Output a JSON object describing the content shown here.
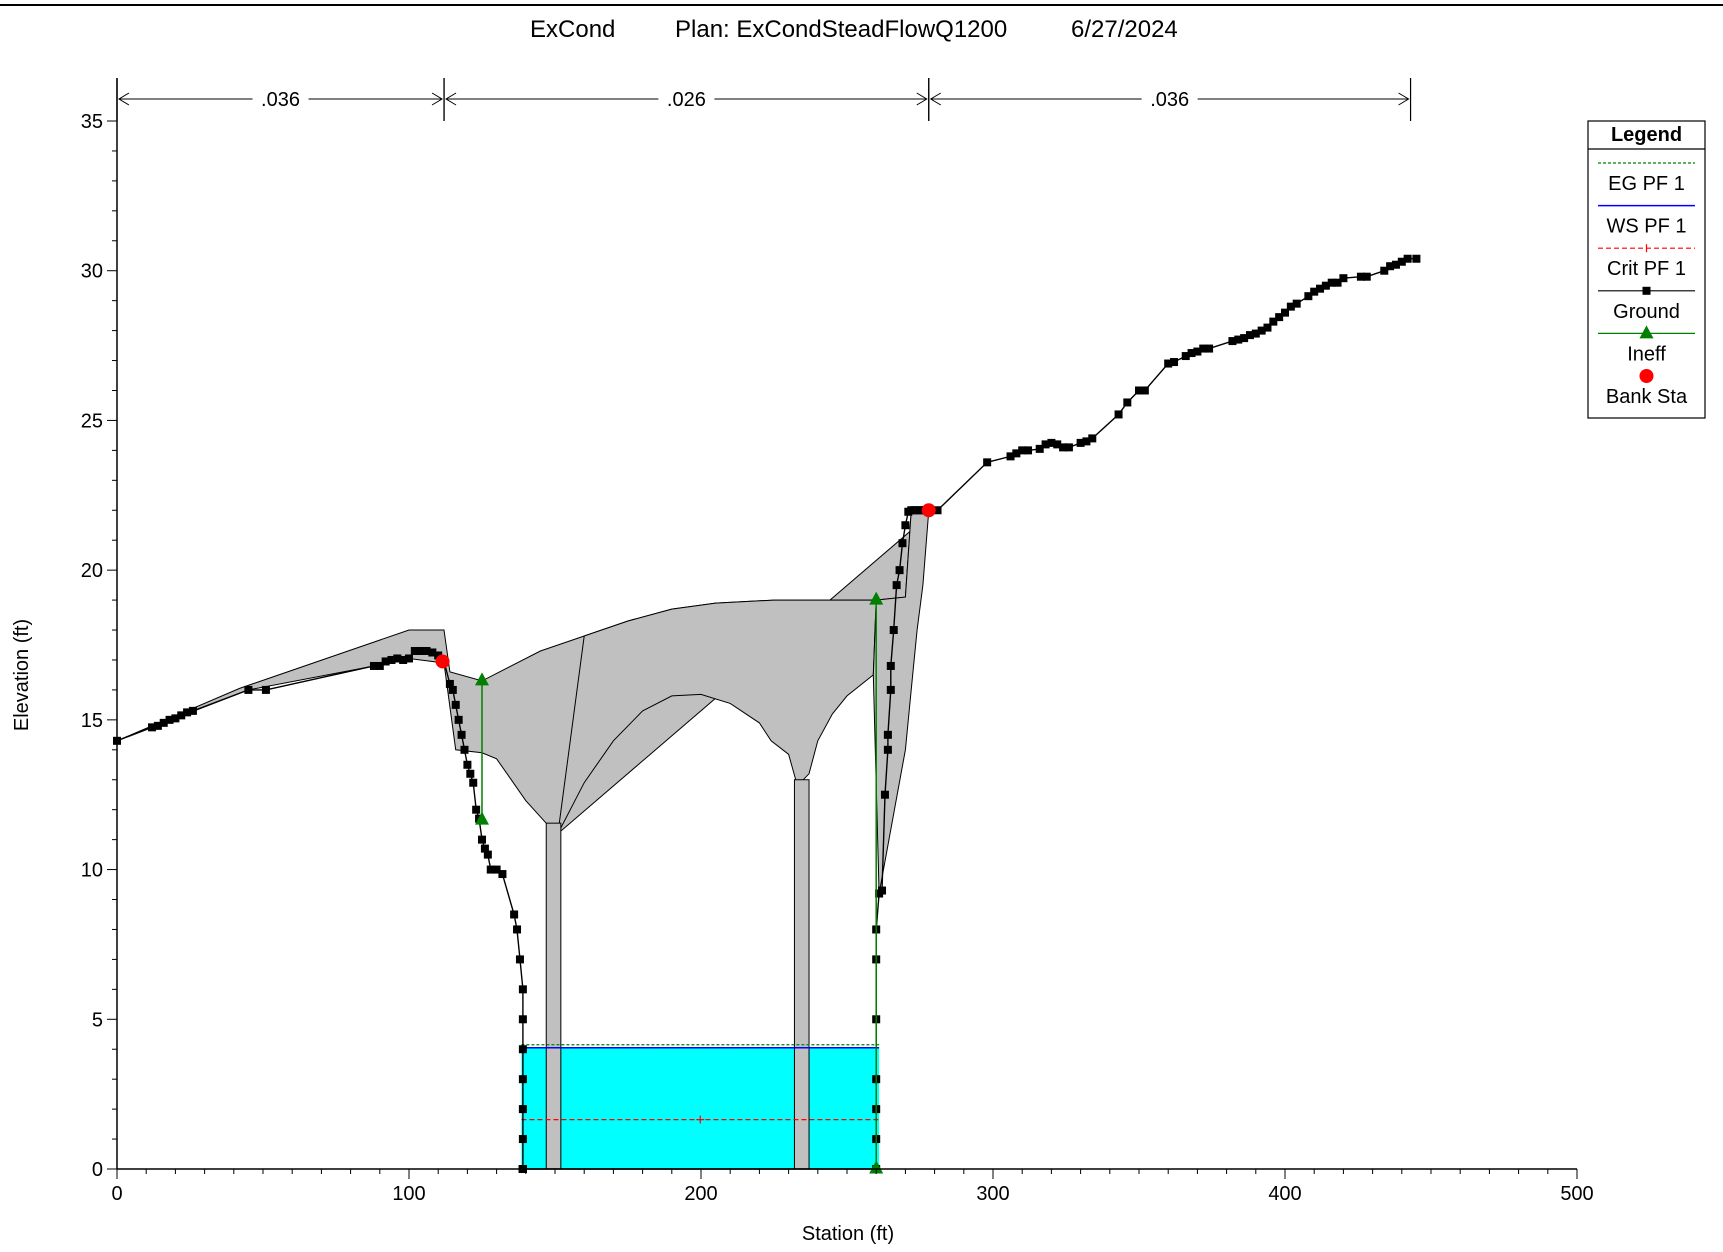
{
  "header": {
    "project": "ExCond",
    "plan": "Plan: ExCondSteadFlowQ1200",
    "date": "6/27/2024"
  },
  "colors": {
    "ground": "#000000",
    "bridge_fill": "#c0c0c0",
    "water": "#00ffff",
    "eg": "#008000",
    "ws": "#0000ff",
    "crit": "#ff0000",
    "ineff": "#008000",
    "bank": "#ff0000"
  },
  "chart_data": {
    "type": "line",
    "title": "ExCond Plan: ExCondSteadFlowQ1200 6/27/2024",
    "xlabel": "Station (ft)",
    "ylabel": "Elevation (ft)",
    "xlim": [
      0,
      500
    ],
    "ylim": [
      0,
      35
    ],
    "xticks": [
      0,
      100,
      200,
      300,
      400,
      500
    ],
    "yticks": [
      0,
      5,
      10,
      15,
      20,
      25,
      30,
      35
    ],
    "grid": false,
    "legend_position": "right",
    "legend": {
      "title": "Legend",
      "entries": [
        "EG PF 1",
        "WS PF 1",
        "Crit PF 1",
        "Ground",
        "Ineff",
        "Bank Sta"
      ]
    },
    "mannings_n": [
      {
        "label": ".036",
        "from": 0,
        "to": 112
      },
      {
        "label": ".026",
        "from": 112,
        "to": 278
      },
      {
        "label": ".036",
        "from": 278,
        "to": 443
      }
    ],
    "water_surface": {
      "eg": 4.15,
      "ws": 4.05,
      "crit": 1.65,
      "x_left": 138.5,
      "x_right": 261
    },
    "bank_stations": [
      {
        "x": 111.5,
        "y": 16.95
      },
      {
        "x": 278,
        "y": 22
      }
    ],
    "ineffective_areas": [
      {
        "x": 125,
        "y_top": 16.35,
        "y_bottom": 11.7
      },
      {
        "x": 260,
        "y_top": 19.05,
        "y_bottom": 0.05
      }
    ],
    "ground": {
      "x": [
        0,
        12,
        14,
        16,
        18,
        20,
        22,
        24,
        26,
        45,
        51,
        88,
        90,
        92,
        94,
        96,
        98,
        100,
        102,
        104,
        106,
        108,
        110,
        112,
        114,
        115,
        116,
        117,
        118,
        119,
        120,
        121,
        122,
        123,
        124,
        125,
        126,
        127,
        128,
        130,
        132,
        136,
        137,
        138,
        139,
        139,
        139,
        139,
        139,
        139,
        139,
        139,
        139,
        139,
        139,
        139,
        139,
        139,
        139,
        139,
        260,
        260,
        260,
        260,
        260,
        260,
        260,
        261,
        262,
        263,
        264,
        264,
        265,
        265,
        266,
        267,
        268,
        269,
        270,
        271,
        272,
        273,
        274,
        275,
        276,
        277,
        278,
        281,
        298,
        306,
        308,
        310,
        312,
        316,
        318,
        320,
        322,
        324,
        326,
        330,
        332,
        334,
        343,
        346,
        350,
        352,
        360,
        362,
        366,
        368,
        370,
        372,
        374,
        382,
        384,
        386,
        388,
        390,
        392,
        394,
        396,
        398,
        400,
        402,
        404,
        408,
        410,
        412,
        414,
        416,
        418,
        420,
        426,
        428,
        434,
        436,
        438,
        440,
        442,
        445
      ],
      "y": [
        14.3,
        14.75,
        14.8,
        14.9,
        15.0,
        15.05,
        15.15,
        15.25,
        15.3,
        16.0,
        16.0,
        16.8,
        16.8,
        16.95,
        17.0,
        17.05,
        17.0,
        17.05,
        17.3,
        17.3,
        17.3,
        17.25,
        17.15,
        16.95,
        16.2,
        16.0,
        15.5,
        15.0,
        14.5,
        14.0,
        13.5,
        13.2,
        12.9,
        12.0,
        11.7,
        11.0,
        10.7,
        10.5,
        10.0,
        10.0,
        9.85,
        8.5,
        8.0,
        7.0,
        6.0,
        5.0,
        4.0,
        3.0,
        2.0,
        1.0,
        0.0,
        0.0,
        0.0,
        0.0,
        0.0,
        0.0,
        0.0,
        0.0,
        0.0,
        0.0,
        0.0,
        1.0,
        2.0,
        3.0,
        5.0,
        7.0,
        8.0,
        9.2,
        9.3,
        12.5,
        14.0,
        14.5,
        16.0,
        16.8,
        18.0,
        19.5,
        20.0,
        20.9,
        21.5,
        21.95,
        22.0,
        22.0,
        22.0,
        22.0,
        22.0,
        22.0,
        22.0,
        22.0,
        23.6,
        23.8,
        23.9,
        24.0,
        24.0,
        24.05,
        24.2,
        24.25,
        24.2,
        24.1,
        24.1,
        24.25,
        24.3,
        24.4,
        25.2,
        25.6,
        26.0,
        26.0,
        26.9,
        26.95,
        27.15,
        27.25,
        27.3,
        27.4,
        27.4,
        27.65,
        27.7,
        27.75,
        27.85,
        27.9,
        28.0,
        28.1,
        28.3,
        28.45,
        28.6,
        28.8,
        28.9,
        29.15,
        29.3,
        29.4,
        29.5,
        29.6,
        29.6,
        29.75,
        29.8,
        29.8,
        30.0,
        30.15,
        30.2,
        30.3,
        30.4,
        30.4
      ]
    },
    "bridge_deck": {
      "top": [
        [
          0,
          14.3
        ],
        [
          42,
          16.05
        ],
        [
          100,
          18.0
        ],
        [
          112,
          18.0
        ],
        [
          114,
          16.6
        ],
        [
          125,
          16.3
        ],
        [
          131,
          16.6
        ],
        [
          145,
          17.3
        ],
        [
          160,
          17.8
        ],
        [
          175,
          18.3
        ],
        [
          190,
          18.7
        ],
        [
          205,
          18.9
        ],
        [
          225,
          19.0
        ],
        [
          260,
          19.0
        ],
        [
          270,
          19.1
        ],
        [
          272,
          21.95
        ],
        [
          280,
          22.0
        ]
      ],
      "bottom_left": [
        [
          0,
          14.3
        ],
        [
          45,
          16.0
        ],
        [
          88,
          16.8
        ],
        [
          100,
          17.05
        ],
        [
          112,
          16.9
        ],
        [
          116,
          14.0
        ],
        [
          125,
          13.9
        ],
        [
          130,
          13.7
        ],
        [
          135,
          13.0
        ],
        [
          140,
          12.3
        ],
        [
          147,
          11.55
        ],
        [
          151,
          11.2
        ]
      ],
      "arch": [
        [
          151,
          11.2
        ],
        [
          160,
          12.9
        ],
        [
          170,
          14.3
        ],
        [
          180,
          15.3
        ],
        [
          190,
          15.8
        ],
        [
          200,
          15.85
        ],
        [
          210,
          15.55
        ],
        [
          220,
          14.9
        ],
        [
          224,
          14.3
        ],
        [
          230,
          13.85
        ],
        [
          233,
          12.8
        ]
      ],
      "bottom_right": [
        [
          237,
          13.2
        ],
        [
          240,
          14.3
        ],
        [
          245,
          15.2
        ],
        [
          250,
          15.8
        ],
        [
          259,
          16.5
        ]
      ],
      "pier_bottom": 0,
      "piers": [
        [
          147,
          152
        ],
        [
          232,
          237
        ]
      ]
    }
  }
}
